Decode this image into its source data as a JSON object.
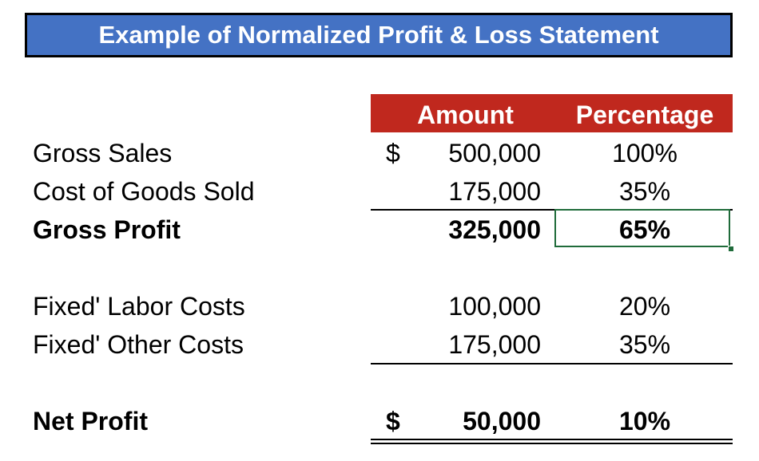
{
  "title": "Example of Normalized Profit & Loss Statement",
  "colors": {
    "title_bg": "#4472c4",
    "header_bg": "#c0281e",
    "selection": "#1f6b3a"
  },
  "headers": {
    "amount": "Amount",
    "percentage": "Percentage"
  },
  "rows": {
    "gross_sales": {
      "label": "Gross Sales",
      "currency": "$",
      "amount": "500,000",
      "percentage": "100%"
    },
    "cogs": {
      "label": "Cost of Goods Sold",
      "amount": "175,000",
      "percentage": "35%"
    },
    "gross_profit": {
      "label": "Gross Profit",
      "amount": "325,000",
      "percentage": "65%"
    },
    "labor": {
      "label": "Fixed' Labor Costs",
      "amount": "100,000",
      "percentage": "20%"
    },
    "other": {
      "label": "Fixed' Other Costs",
      "amount": "175,000",
      "percentage": "35%"
    },
    "net_profit": {
      "label": "Net Profit",
      "currency": "$",
      "amount": "50,000",
      "percentage": "10%"
    }
  }
}
